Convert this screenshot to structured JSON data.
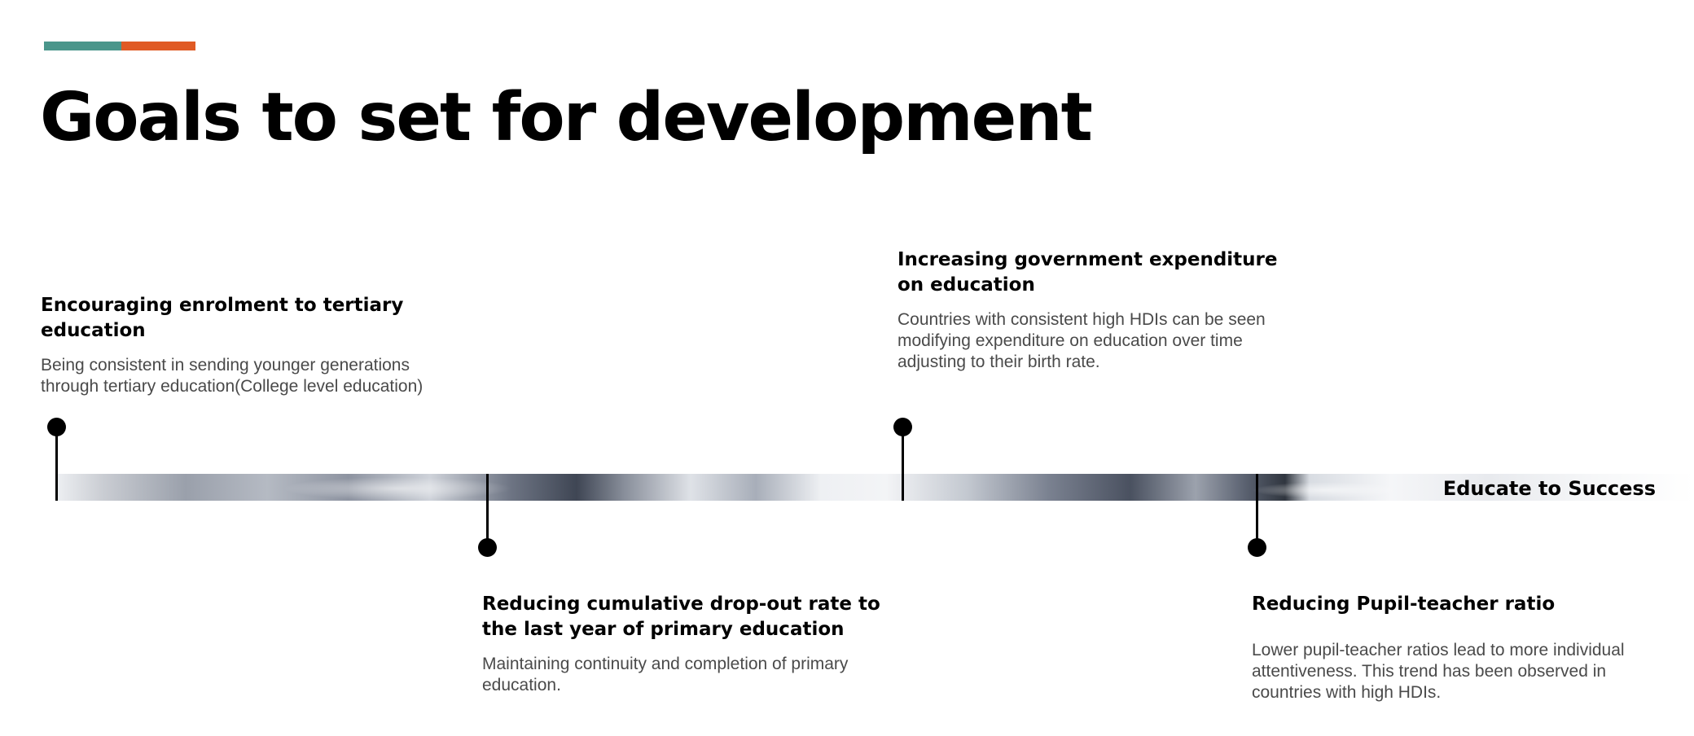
{
  "slide": {
    "title": "Goals to set for development",
    "accent_colors": [
      "#4a968b",
      "#e05a24"
    ],
    "band_label": "Educate to Success"
  },
  "milestones": [
    {
      "heading": "Encouraging enrolment to tertiary education",
      "body": "Being consistent in sending younger generations through tertiary education(College level education)"
    },
    {
      "heading": "Reducing cumulative drop-out rate to the last year of primary education",
      "body": "Maintaining continuity and completion of primary education."
    },
    {
      "heading": "Increasing government expenditure on education",
      "body": "Countries with consistent high HDIs can be seen modifying expenditure on education over time adjusting to their birth rate."
    },
    {
      "heading": "Reducing Pupil-teacher ratio",
      "body": "Lower pupil-teacher ratios lead to more individual attentiveness. This trend has been observed in countries with high HDIs."
    }
  ]
}
